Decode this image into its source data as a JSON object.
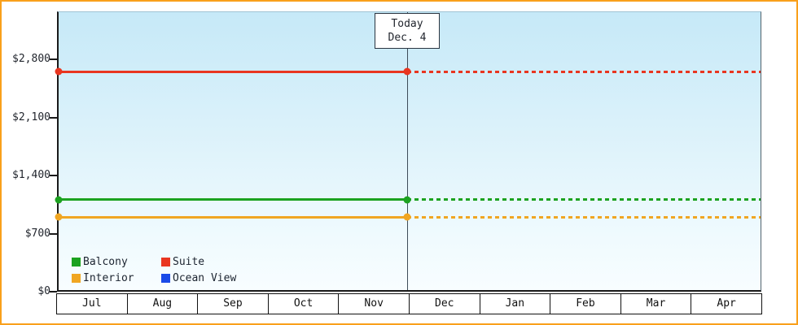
{
  "chart_data": {
    "type": "line",
    "title": "",
    "xlabel": "",
    "ylabel": "",
    "grid": false,
    "legend_position": "bottom-left",
    "x_axis": {
      "months": [
        "Jul",
        "Aug",
        "Sep",
        "Oct",
        "Nov",
        "Dec",
        "Jan",
        "Feb",
        "Mar",
        "Apr"
      ]
    },
    "y_axis": {
      "max": 2800,
      "min": 0,
      "ticks": [
        {
          "label": "$2,800",
          "value": 2800
        },
        {
          "label": "$2,100",
          "value": 2100
        },
        {
          "label": "$1,400",
          "value": 1400
        },
        {
          "label": "$700",
          "value": 700
        },
        {
          "label": "$0",
          "value": 0
        }
      ]
    },
    "today_marker": {
      "line1": "Today",
      "line2": "Dec. 4",
      "position_pct": 49.7,
      "dashed_after_today": true
    },
    "series": [
      {
        "name": "Balcony",
        "color": "#1ca220",
        "value": 1120
      },
      {
        "name": "Suite",
        "color": "#e93620",
        "value": 2660
      },
      {
        "name": "Interior",
        "color": "#f0a622",
        "value": 910
      },
      {
        "name": "Ocean View",
        "color": "#1a4ae8",
        "value": null
      }
    ],
    "legend": {
      "items": [
        "Balcony",
        "Suite",
        "Interior",
        "Ocean View"
      ]
    }
  },
  "colors": {
    "frame_border": "#f9a01b",
    "axis": "#1a1a1a",
    "today_line": "#3e4c59",
    "plot_bg_top": "#c6e9f8",
    "plot_bg_bottom": "#f8fdff"
  }
}
